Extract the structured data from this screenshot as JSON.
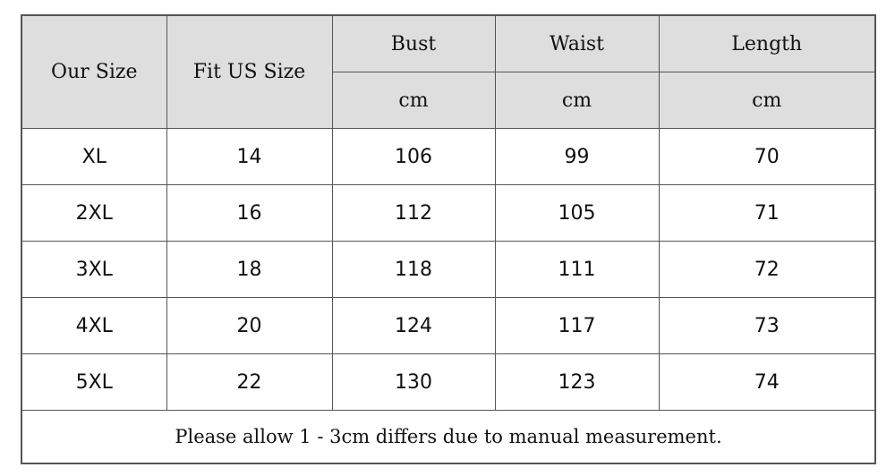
{
  "table": {
    "headers": {
      "our_size": "Our Size",
      "fit_us_size": "Fit US Size",
      "bust": "Bust",
      "waist": "Waist",
      "length": "Length",
      "bust_unit": "cm",
      "waist_unit": "cm",
      "length_unit": "cm"
    },
    "rows": [
      [
        "XL",
        "14",
        "106",
        "99",
        "70"
      ],
      [
        "2XL",
        "16",
        "112",
        "105",
        "71"
      ],
      [
        "3XL",
        "18",
        "118",
        "111",
        "72"
      ],
      [
        "4XL",
        "20",
        "124",
        "117",
        "73"
      ],
      [
        "5XL",
        "22",
        "130",
        "123",
        "74"
      ]
    ],
    "note": "Please allow 1 - 3cm differs due to manual measurement."
  },
  "colors": {
    "header_bg": "#dedede",
    "border": "#555555",
    "text": "#111111"
  }
}
